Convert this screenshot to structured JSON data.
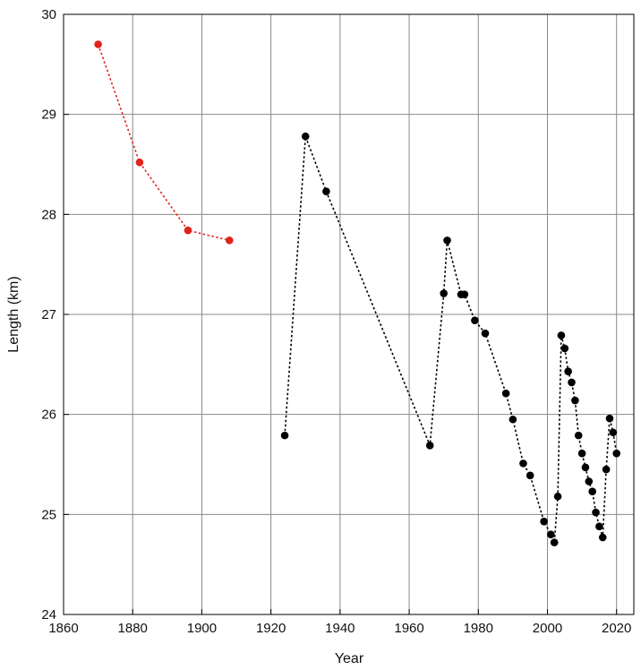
{
  "chart_data": {
    "type": "scatter",
    "title": "",
    "xlabel": "Year",
    "ylabel": "Length (km)",
    "xlim": [
      1860,
      2025
    ],
    "ylim": [
      24,
      30
    ],
    "x_ticks": [
      1860,
      1880,
      1900,
      1920,
      1940,
      1960,
      1980,
      2000,
      2020
    ],
    "y_ticks": [
      24,
      25,
      26,
      27,
      28,
      29,
      30
    ],
    "grid": true,
    "line_style": "dotted",
    "series": [
      {
        "color": "#e0241b",
        "points": [
          [
            1870,
            29.7
          ],
          [
            1882,
            28.52
          ],
          [
            1896,
            27.84
          ],
          [
            1908,
            27.74
          ]
        ]
      },
      {
        "color": "#000000",
        "points": [
          [
            1924,
            25.79
          ],
          [
            1930,
            28.78
          ],
          [
            1936,
            28.23
          ],
          [
            1966,
            25.69
          ],
          [
            1970,
            27.21
          ],
          [
            1971,
            27.74
          ],
          [
            1975,
            27.2
          ],
          [
            1976,
            27.2
          ],
          [
            1979,
            26.94
          ],
          [
            1982,
            26.81
          ],
          [
            1988,
            26.21
          ],
          [
            1990,
            25.95
          ],
          [
            1993,
            25.51
          ],
          [
            1995,
            25.39
          ],
          [
            1999,
            24.93
          ],
          [
            2001,
            24.8
          ],
          [
            2002,
            24.72
          ],
          [
            2003,
            25.18
          ],
          [
            2004,
            26.79
          ],
          [
            2005,
            26.66
          ],
          [
            2006,
            26.43
          ],
          [
            2007,
            26.32
          ],
          [
            2008,
            26.14
          ],
          [
            2009,
            25.79
          ],
          [
            2010,
            25.61
          ],
          [
            2011,
            25.47
          ],
          [
            2012,
            25.33
          ],
          [
            2013,
            25.23
          ],
          [
            2014,
            25.02
          ],
          [
            2015,
            24.88
          ],
          [
            2016,
            24.77
          ],
          [
            2017,
            25.45
          ],
          [
            2018,
            25.96
          ],
          [
            2019,
            25.82
          ],
          [
            2020,
            25.61
          ]
        ]
      }
    ]
  }
}
